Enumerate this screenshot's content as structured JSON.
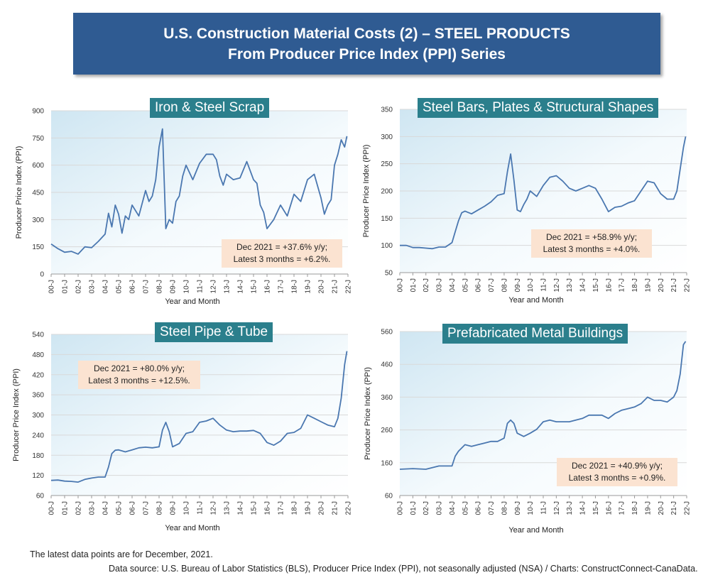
{
  "header": {
    "line1": "U.S. Construction Material Costs (2) – STEEL PRODUCTS",
    "line2": "From Producer Price Index (PPI) Series"
  },
  "footer": {
    "note": "The latest data points are for December, 2021.",
    "source": "Data source: U.S. Bureau of Labor Statistics (BLS), Producer Price Index (PPI), not seasonally adjusted (NSA) / Charts: ConstructConnect-CanaData."
  },
  "colors": {
    "line": "#4a77b0",
    "title_bg": "#2b7f8c",
    "banner_bg": "#2f5b92",
    "note_bg": "#fbe3d1"
  },
  "chart_data": [
    {
      "type": "line",
      "title": "Iron & Steel Scrap",
      "xlabel": "Year and Month",
      "ylabel": "Producer Price Index (PPI)",
      "yticks": [
        0,
        150,
        300,
        450,
        600,
        750,
        900
      ],
      "ylim": [
        0,
        900
      ],
      "x_ticks": [
        "00-J",
        "01-J",
        "02-J",
        "03-J",
        "04-J",
        "05-J",
        "06-J",
        "07-J",
        "08-J",
        "09-J",
        "10-J",
        "11-J",
        "12-J",
        "13-J",
        "14-J",
        "15-J",
        "16-J",
        "17-J",
        "18-J",
        "19-J",
        "20-J",
        "21-J",
        "22-J"
      ],
      "xlim": [
        2000.0,
        2022.0
      ],
      "annotation": [
        "Dec 2021 = +37.6% y/y;",
        "Latest 3 months = +6.2%."
      ],
      "series": [
        {
          "x": [
            2000.0,
            2000.5,
            2001.0,
            2001.5,
            2002.0,
            2002.5,
            2003.0,
            2003.5,
            2004.0,
            2004.25,
            2004.5,
            2004.75,
            2005.0,
            2005.25,
            2005.5,
            2005.75,
            2006.0,
            2006.5,
            2007.0,
            2007.25,
            2007.5,
            2007.75,
            2008.0,
            2008.25,
            2008.5,
            2008.75,
            2009.0,
            2009.25,
            2009.5,
            2009.75,
            2010.0,
            2010.5,
            2011.0,
            2011.5,
            2012.0,
            2012.25,
            2012.5,
            2012.75,
            2013.0,
            2013.5,
            2014.0,
            2014.5,
            2015.0,
            2015.25,
            2015.5,
            2015.75,
            2016.0,
            2016.5,
            2017.0,
            2017.5,
            2018.0,
            2018.5,
            2019.0,
            2019.5,
            2020.0,
            2020.25,
            2020.5,
            2020.75,
            2021.0,
            2021.25,
            2021.5,
            2021.75,
            2021.92
          ],
          "y": [
            165,
            140,
            120,
            125,
            110,
            150,
            145,
            180,
            220,
            335,
            260,
            380,
            330,
            225,
            320,
            300,
            380,
            320,
            460,
            400,
            430,
            520,
            700,
            800,
            250,
            300,
            280,
            400,
            430,
            540,
            600,
            520,
            610,
            660,
            660,
            630,
            540,
            490,
            550,
            520,
            530,
            620,
            520,
            500,
            380,
            340,
            250,
            300,
            380,
            320,
            440,
            400,
            520,
            550,
            420,
            330,
            380,
            410,
            600,
            660,
            740,
            700,
            760
          ]
        }
      ]
    },
    {
      "type": "line",
      "title": "Steel Bars, Plates & Structural Shapes",
      "xlabel": "Year and Month",
      "ylabel": "Producer Price Index (PPI)",
      "yticks": [
        50,
        100,
        150,
        200,
        250,
        300,
        350
      ],
      "ylim": [
        50,
        350
      ],
      "x_ticks": [
        "00-J",
        "01-J",
        "02-J",
        "03-J",
        "04-J",
        "05-J",
        "06-J",
        "07-J",
        "08-J",
        "09-J",
        "10-J",
        "11-J",
        "12-J",
        "13-J",
        "14-J",
        "15-J",
        "16-J",
        "17-J",
        "18-J",
        "19-J",
        "20-J",
        "21-J",
        "22-J"
      ],
      "xlim": [
        2000.0,
        2022.0
      ],
      "annotation": [
        "Dec 2021 = +58.9% y/y;",
        "Latest 3 months = +4.0%."
      ],
      "series": [
        {
          "x": [
            2000.0,
            2000.5,
            2001.0,
            2001.5,
            2002.0,
            2002.5,
            2003.0,
            2003.5,
            2004.0,
            2004.25,
            2004.5,
            2004.75,
            2005.0,
            2005.5,
            2006.0,
            2006.5,
            2007.0,
            2007.5,
            2008.0,
            2008.25,
            2008.5,
            2008.75,
            2009.0,
            2009.25,
            2009.5,
            2009.75,
            2010.0,
            2010.5,
            2011.0,
            2011.5,
            2012.0,
            2012.5,
            2013.0,
            2013.5,
            2014.0,
            2014.5,
            2015.0,
            2015.5,
            2016.0,
            2016.5,
            2017.0,
            2017.5,
            2018.0,
            2018.5,
            2019.0,
            2019.5,
            2020.0,
            2020.5,
            2021.0,
            2021.25,
            2021.5,
            2021.75,
            2021.92
          ],
          "y": [
            100,
            100,
            96,
            96,
            95,
            94,
            97,
            97,
            105,
            125,
            145,
            160,
            163,
            158,
            165,
            172,
            180,
            192,
            195,
            235,
            268,
            220,
            165,
            162,
            175,
            185,
            200,
            190,
            210,
            225,
            228,
            218,
            205,
            200,
            205,
            210,
            205,
            185,
            162,
            170,
            172,
            178,
            182,
            200,
            218,
            215,
            195,
            185,
            185,
            200,
            240,
            280,
            300
          ]
        }
      ]
    },
    {
      "type": "line",
      "title": "Steel Pipe & Tube",
      "xlabel": "Year and Month",
      "ylabel": "Producer Price Index (PPI)",
      "yticks": [
        60,
        120,
        180,
        240,
        300,
        360,
        420,
        480,
        540
      ],
      "ylim": [
        60,
        540
      ],
      "x_ticks": [
        "00-J",
        "01-J",
        "02-J",
        "03-J",
        "04-J",
        "05-J",
        "06-J",
        "07-J",
        "08-J",
        "09-J",
        "10-J",
        "11-J",
        "12-J",
        "13-J",
        "14-J",
        "15-J",
        "16-J",
        "17-J",
        "18-J",
        "19-J",
        "20-J",
        "21-J",
        "22-J"
      ],
      "xlim": [
        2000.0,
        2022.0
      ],
      "annotation": [
        "Dec 2021 = +80.0% y/y;",
        "Latest 3 months = +12.5%."
      ],
      "series": [
        {
          "x": [
            2000.0,
            2000.5,
            2001.0,
            2001.5,
            2002.0,
            2002.5,
            2003.0,
            2003.5,
            2004.0,
            2004.25,
            2004.5,
            2004.75,
            2005.0,
            2005.5,
            2006.0,
            2006.5,
            2007.0,
            2007.5,
            2008.0,
            2008.25,
            2008.5,
            2008.75,
            2009.0,
            2009.5,
            2010.0,
            2010.5,
            2011.0,
            2011.5,
            2012.0,
            2012.5,
            2013.0,
            2013.5,
            2014.0,
            2014.5,
            2015.0,
            2015.5,
            2016.0,
            2016.5,
            2017.0,
            2017.5,
            2018.0,
            2018.5,
            2019.0,
            2019.5,
            2020.0,
            2020.5,
            2021.0,
            2021.25,
            2021.5,
            2021.75,
            2021.92
          ],
          "y": [
            105,
            106,
            103,
            102,
            100,
            108,
            112,
            115,
            115,
            145,
            185,
            195,
            196,
            190,
            196,
            202,
            204,
            202,
            205,
            255,
            278,
            250,
            205,
            215,
            245,
            250,
            278,
            282,
            290,
            270,
            255,
            250,
            252,
            252,
            254,
            245,
            218,
            210,
            222,
            245,
            248,
            260,
            300,
            290,
            280,
            270,
            265,
            290,
            350,
            450,
            490
          ]
        }
      ]
    },
    {
      "type": "line",
      "title": "Prefabricated Metal Buildings",
      "xlabel": "Year and Month",
      "ylabel": "Producer Price Index (PPI)",
      "yticks": [
        60,
        160,
        260,
        360,
        460,
        560
      ],
      "ylim": [
        60,
        560
      ],
      "x_ticks": [
        "00-J",
        "01-J",
        "02-J",
        "03-J",
        "04-J",
        "05-J",
        "06-J",
        "07-J",
        "08-J",
        "09-J",
        "10-J",
        "11-J",
        "12-J",
        "13-J",
        "14-J",
        "15-J",
        "16-J",
        "17-J",
        "18-J",
        "19-J",
        "20-J",
        "21-J",
        "22-J"
      ],
      "xlim": [
        2000.0,
        2022.0
      ],
      "annotation": [
        "Dec 2021 = +40.9% y/y;",
        "Latest 3 months = +0.9%."
      ],
      "series": [
        {
          "x": [
            2000.0,
            2001.0,
            2002.0,
            2003.0,
            2004.0,
            2004.25,
            2004.5,
            2004.75,
            2005.0,
            2005.5,
            2006.0,
            2006.5,
            2007.0,
            2007.5,
            2008.0,
            2008.25,
            2008.5,
            2008.75,
            2009.0,
            2009.5,
            2010.0,
            2010.5,
            2011.0,
            2011.5,
            2012.0,
            2013.0,
            2014.0,
            2014.5,
            2015.0,
            2015.5,
            2016.0,
            2016.5,
            2017.0,
            2017.5,
            2018.0,
            2018.5,
            2019.0,
            2019.5,
            2020.0,
            2020.5,
            2021.0,
            2021.25,
            2021.5,
            2021.75,
            2021.92
          ],
          "y": [
            140,
            142,
            140,
            150,
            150,
            180,
            195,
            205,
            215,
            210,
            215,
            220,
            225,
            225,
            235,
            280,
            290,
            280,
            250,
            240,
            250,
            262,
            285,
            290,
            285,
            285,
            295,
            305,
            305,
            305,
            295,
            310,
            320,
            325,
            330,
            340,
            360,
            350,
            350,
            345,
            360,
            380,
            430,
            520,
            530
          ]
        }
      ]
    }
  ]
}
